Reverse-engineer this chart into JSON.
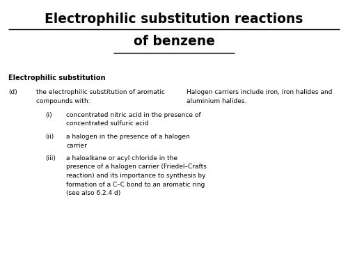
{
  "title_line1": "Electrophilic substitution reactions",
  "title_line2": "of benzene",
  "bg_color": "#ffffff",
  "section_header": "Electrophilic substitution",
  "d_label": "(d)",
  "d_text_line1": "the electrophilic substitution of aromatic",
  "d_text_line2": "compounds with:",
  "items": [
    {
      "label": "(i)",
      "lines": [
        "concentrated nitric acid in the presence of",
        "concentrated sulfuric acid"
      ]
    },
    {
      "label": "(ii)",
      "lines": [
        "a halogen in the presence of a halogen",
        "carrier"
      ]
    },
    {
      "label": "(iii)",
      "lines": [
        "a haloalkane or acyl chloride in the",
        "presence of a halogen carrier (Friedel–Crafts",
        "reaction) and its importance to synthesis by",
        "formation of a C–C bond to an aromatic ring",
        "(see also 6.2.4 d)"
      ]
    }
  ],
  "note_line1": "Halogen carriers include iron, iron halides and",
  "note_line2": "aluminium halides.",
  "title_fontsize": 13.5,
  "body_fontsize": 6.5,
  "header_fontsize": 7.0
}
